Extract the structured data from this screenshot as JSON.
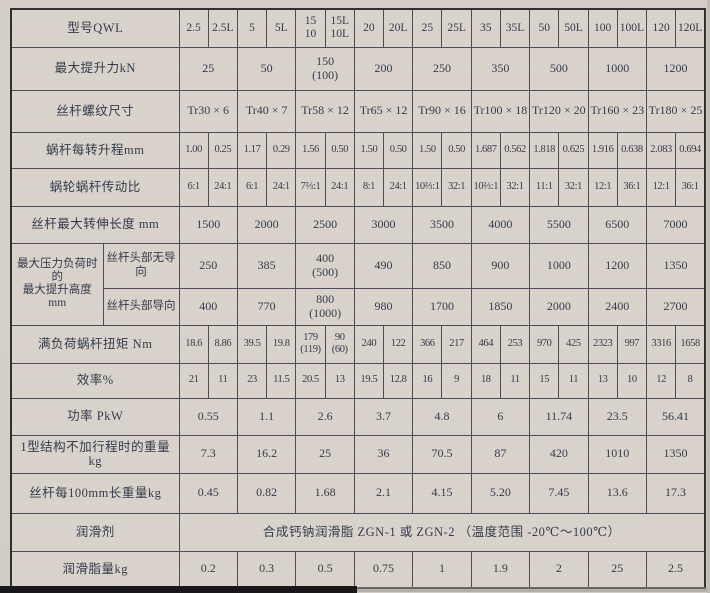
{
  "colors": {
    "paper": "#d6d0c9",
    "cell": "#dad5cd",
    "grid": "#504b55",
    "text": "#333a49",
    "scan_bar": "#161616"
  },
  "table": {
    "header": {
      "label": "型号QWL",
      "models": [
        "2.5",
        "2.5L",
        "5",
        "5L",
        "15\n10",
        "15L\n10L",
        "20",
        "20L",
        "25",
        "25L",
        "35",
        "35L",
        "50",
        "50L",
        "100",
        "100L",
        "120",
        "120L"
      ]
    },
    "rows": [
      {
        "label": "最大提升力kN",
        "span": 2,
        "cells": [
          "25",
          "50",
          "150\n(100)",
          "200",
          "250",
          "350",
          "500",
          "1000",
          "1200"
        ]
      },
      {
        "label": "丝杆螺纹尺寸",
        "span": 2,
        "cells": [
          "Tr30 × 6",
          "Tr40 × 7",
          "Tr58 × 12",
          "Tr65 × 12",
          "Tr90 × 16",
          "Tr100 × 18",
          "Tr120 × 20",
          "Tr160 × 23",
          "Tr180 × 25"
        ]
      },
      {
        "label": "蜗杆每转升程mm",
        "span": 1,
        "cells": [
          "1.00",
          "0.25",
          "1.17",
          "0.29",
          "1.56",
          "0.50",
          "1.50",
          "0.50",
          "1.50",
          "0.50",
          "1.687",
          "0.562",
          "1.818",
          "0.625",
          "1.916",
          "0.638",
          "2.083",
          "0.694"
        ]
      },
      {
        "label": "蜗轮蜗杆传动比",
        "span": 1,
        "cells": [
          "6:1",
          "24:1",
          "6:1",
          "24:1",
          "7⅔:1",
          "24:1",
          "8:1",
          "24:1",
          "10⅔:1",
          "32:1",
          "10⅔:1",
          "32:1",
          "11:1",
          "32:1",
          "12:1",
          "36:1",
          "12:1",
          "36:1"
        ]
      },
      {
        "label": "丝杆最大转伸长度 mm",
        "span": 2,
        "cells": [
          "1500",
          "2000",
          "2500",
          "3000",
          "3500",
          "4000",
          "5500",
          "6500",
          "7000"
        ]
      },
      {
        "group": "最大压力负荷时的\n最大提升高度mm",
        "label": "丝杆头部无导向",
        "span": 2,
        "cells": [
          "250",
          "385",
          "400\n(500)",
          "490",
          "850",
          "900",
          "1000",
          "1200",
          "1350"
        ]
      },
      {
        "in_group": true,
        "label": "丝杆头部导向",
        "span": 2,
        "cells": [
          "400",
          "770",
          "800\n(1000)",
          "980",
          "1700",
          "1850",
          "2000",
          "2400",
          "2700"
        ]
      },
      {
        "label": "满负荷蜗杆扭矩 Nm",
        "span": 1,
        "cells": [
          "18.6",
          "8.86",
          "39.5",
          "19.8",
          "179\n(119)",
          "90\n(60)",
          "240",
          "122",
          "366",
          "217",
          "464",
          "253",
          "970",
          "425",
          "2323",
          "997",
          "3316",
          "1658"
        ]
      },
      {
        "label": "效率%",
        "span": 1,
        "cells": [
          "21",
          "11",
          "23",
          "11.5",
          "20.5",
          "13",
          "19.5",
          "12.8",
          "16",
          "9",
          "18",
          "11",
          "15",
          "11",
          "13",
          "10",
          "12",
          "8"
        ]
      },
      {
        "label": "功率 PkW",
        "span": 2,
        "cells": [
          "0.55",
          "1.1",
          "2.6",
          "3.7",
          "4.8",
          "6",
          "11.74",
          "23.5",
          "56.41"
        ]
      },
      {
        "label": "1型结构不加行程时的重量 kg",
        "span": 2,
        "cells": [
          "7.3",
          "16.2",
          "25",
          "36",
          "70.5",
          "87",
          "420",
          "1010",
          "1350"
        ]
      },
      {
        "label": "丝杆每100mm长重量kg",
        "span": 2,
        "cells": [
          "0.45",
          "0.82",
          "1.68",
          "2.1",
          "4.15",
          "5.20",
          "7.45",
          "13.6",
          "17.3"
        ]
      },
      {
        "label": "润滑剂",
        "span": 18,
        "cells": [
          "合成钙钠润滑脂 ZGN-1 或 ZGN-2 （温度范围 -20℃～100℃）"
        ]
      },
      {
        "label": "润滑脂量kg",
        "span": 2,
        "cells": [
          "0.2",
          "0.3",
          "0.5",
          "0.75",
          "1",
          "1.9",
          "2",
          "25",
          "2.5"
        ]
      }
    ]
  }
}
